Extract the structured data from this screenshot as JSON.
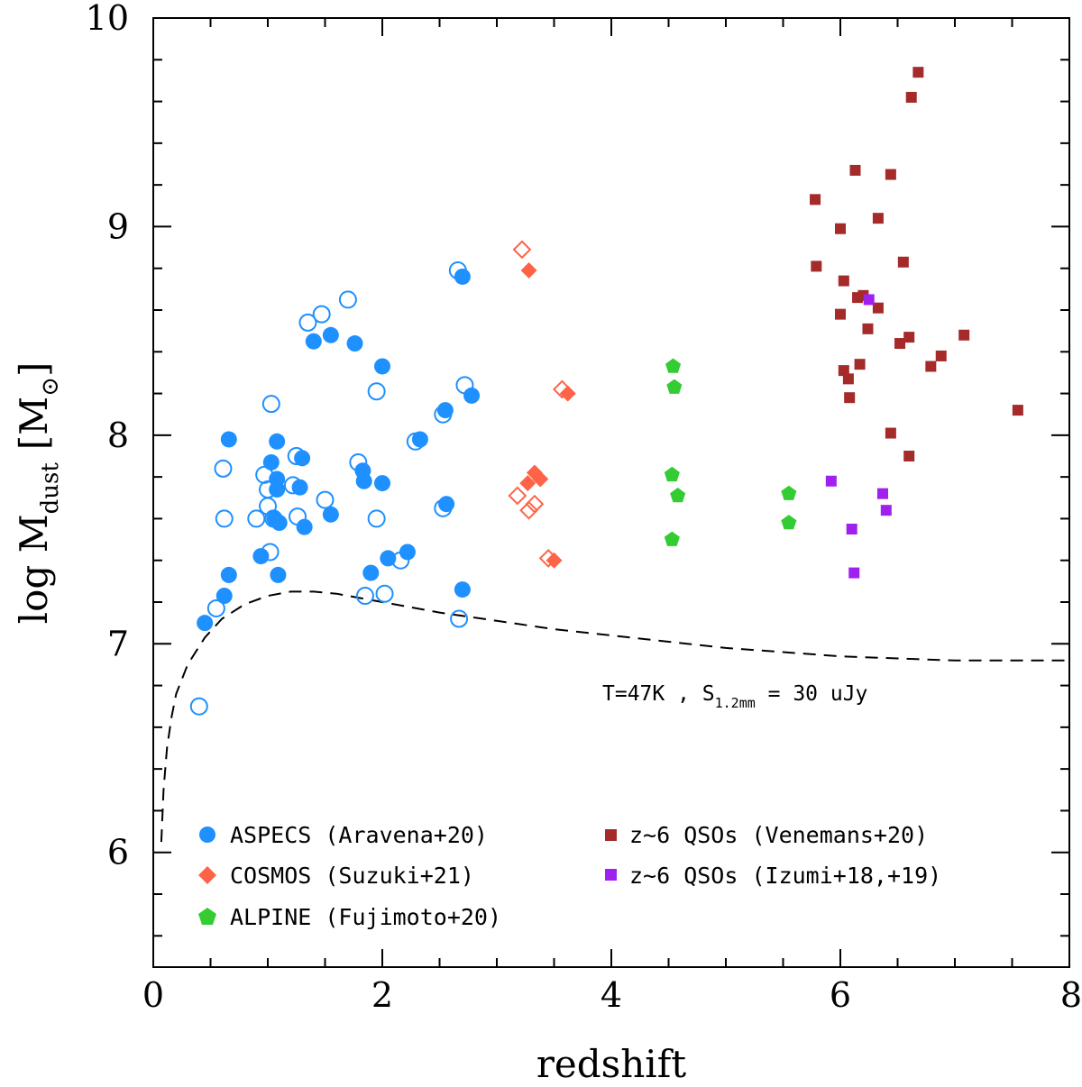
{
  "chart_data": {
    "type": "scatter",
    "title": "",
    "xlabel": "redshift",
    "ylabel": {
      "main": "log M",
      "sub": "dust",
      "unit": "[M",
      "unit_sym": "⊙",
      "unit_close": "]"
    },
    "xlim": [
      0,
      8
    ],
    "ylim": [
      5.45,
      10
    ],
    "xticks": [
      "0",
      "2",
      "4",
      "6",
      "8"
    ],
    "yticks": [
      "6",
      "7",
      "8",
      "9",
      "10"
    ],
    "annotation": {
      "text": "T=47K , S",
      "sub": "1.2mm",
      "rest": " = 30 uJy"
    },
    "colors": {
      "aspecs": "#1e90ff",
      "cosmos": "#ff6347",
      "alpine": "#33cc33",
      "venemans": "#a52a2a",
      "izumi": "#a020f0"
    },
    "series": [
      {
        "name": "ASPECS (Aravena+20)",
        "marker": "circle",
        "color": "#1e90ff",
        "filled": [
          [
            0.45,
            7.1
          ],
          [
            0.62,
            7.23
          ],
          [
            0.66,
            7.33
          ],
          [
            0.66,
            7.98
          ],
          [
            1.08,
            7.97
          ],
          [
            1.03,
            7.87
          ],
          [
            1.08,
            7.79
          ],
          [
            1.08,
            7.74
          ],
          [
            1.06,
            7.6
          ],
          [
            1.1,
            7.58
          ],
          [
            0.94,
            7.42
          ],
          [
            1.09,
            7.33
          ],
          [
            1.3,
            7.89
          ],
          [
            1.28,
            7.75
          ],
          [
            1.32,
            7.56
          ],
          [
            1.55,
            7.62
          ],
          [
            1.4,
            8.45
          ],
          [
            1.55,
            8.48
          ],
          [
            1.76,
            8.44
          ],
          [
            1.83,
            7.83
          ],
          [
            1.84,
            7.78
          ],
          [
            2.0,
            7.77
          ],
          [
            2.0,
            8.33
          ],
          [
            1.9,
            7.34
          ],
          [
            2.05,
            7.41
          ],
          [
            2.22,
            7.44
          ],
          [
            2.33,
            7.98
          ],
          [
            2.55,
            8.12
          ],
          [
            2.56,
            7.67
          ],
          [
            2.7,
            8.76
          ],
          [
            2.78,
            8.19
          ],
          [
            2.7,
            7.26
          ]
        ],
        "open": [
          [
            0.4,
            6.7
          ],
          [
            0.55,
            7.17
          ],
          [
            0.62,
            7.6
          ],
          [
            0.61,
            7.84
          ],
          [
            0.9,
            7.6
          ],
          [
            0.97,
            7.81
          ],
          [
            1.0,
            7.74
          ],
          [
            1.0,
            7.66
          ],
          [
            1.05,
            7.6
          ],
          [
            1.02,
            7.44
          ],
          [
            1.03,
            8.15
          ],
          [
            1.22,
            7.76
          ],
          [
            1.25,
            7.9
          ],
          [
            1.26,
            7.61
          ],
          [
            1.35,
            8.54
          ],
          [
            1.47,
            8.58
          ],
          [
            1.5,
            7.69
          ],
          [
            1.7,
            8.65
          ],
          [
            1.79,
            7.87
          ],
          [
            1.85,
            7.23
          ],
          [
            1.95,
            8.21
          ],
          [
            1.95,
            7.6
          ],
          [
            2.02,
            7.24
          ],
          [
            2.16,
            7.4
          ],
          [
            2.29,
            7.97
          ],
          [
            2.53,
            8.1
          ],
          [
            2.53,
            7.65
          ],
          [
            2.66,
            8.79
          ],
          [
            2.72,
            8.24
          ],
          [
            2.67,
            7.12
          ]
        ]
      },
      {
        "name": "COSMOS (Suzuki+21)",
        "marker": "diamond",
        "color": "#ff6347",
        "filled": [
          [
            3.28,
            8.79
          ],
          [
            3.62,
            8.2
          ],
          [
            3.27,
            7.77
          ],
          [
            3.33,
            7.82
          ],
          [
            3.38,
            7.79
          ],
          [
            3.5,
            7.4
          ]
        ],
        "open": [
          [
            3.22,
            8.89
          ],
          [
            3.57,
            8.22
          ],
          [
            3.18,
            7.71
          ],
          [
            3.28,
            7.64
          ],
          [
            3.33,
            7.67
          ],
          [
            3.45,
            7.41
          ]
        ]
      },
      {
        "name": "ALPINE (Fujimoto+20)",
        "marker": "pentagon",
        "color": "#33cc33",
        "filled": [
          [
            4.54,
            8.33
          ],
          [
            4.55,
            8.23
          ],
          [
            4.53,
            7.81
          ],
          [
            4.58,
            7.71
          ],
          [
            4.53,
            7.5
          ],
          [
            5.55,
            7.72
          ],
          [
            5.55,
            7.58
          ]
        ],
        "open": []
      },
      {
        "name": "z~6 QSOs (Venemans+20)",
        "marker": "square",
        "color": "#a52a2a",
        "filled": [
          [
            6.68,
            9.74
          ],
          [
            6.62,
            9.62
          ],
          [
            6.13,
            9.27
          ],
          [
            6.44,
            9.25
          ],
          [
            5.78,
            9.13
          ],
          [
            6.33,
            9.04
          ],
          [
            6.0,
            8.99
          ],
          [
            5.79,
            8.81
          ],
          [
            6.55,
            8.83
          ],
          [
            6.03,
            8.74
          ],
          [
            6.15,
            8.66
          ],
          [
            6.2,
            8.67
          ],
          [
            6.33,
            8.61
          ],
          [
            6.0,
            8.58
          ],
          [
            6.24,
            8.51
          ],
          [
            6.6,
            8.47
          ],
          [
            6.52,
            8.44
          ],
          [
            7.08,
            8.48
          ],
          [
            6.88,
            8.38
          ],
          [
            6.79,
            8.33
          ],
          [
            6.17,
            8.34
          ],
          [
            6.03,
            8.31
          ],
          [
            6.07,
            8.27
          ],
          [
            6.08,
            8.18
          ],
          [
            7.55,
            8.12
          ],
          [
            6.44,
            8.01
          ],
          [
            6.6,
            7.9
          ]
        ],
        "open": []
      },
      {
        "name": "z~6 QSOs (Izumi+18,+19)",
        "marker": "square",
        "color": "#a020f0",
        "filled": [
          [
            6.25,
            8.65
          ],
          [
            5.92,
            7.78
          ],
          [
            6.37,
            7.72
          ],
          [
            6.4,
            7.64
          ],
          [
            6.1,
            7.55
          ],
          [
            6.12,
            7.34
          ]
        ],
        "open": []
      }
    ],
    "detection_curve": {
      "label": "T=47K , S1.2mm = 30 uJy",
      "x": [
        0.07,
        0.09,
        0.12,
        0.16,
        0.2,
        0.3,
        0.45,
        0.6,
        0.8,
        1.0,
        1.2,
        1.4,
        1.6,
        1.8,
        2.0,
        2.5,
        3.0,
        3.5,
        4.0,
        4.5,
        5.0,
        5.5,
        6.0,
        6.5,
        7.0,
        7.5,
        8.0
      ],
      "y": [
        6.05,
        6.3,
        6.5,
        6.65,
        6.76,
        6.9,
        7.03,
        7.12,
        7.19,
        7.23,
        7.25,
        7.25,
        7.24,
        7.22,
        7.2,
        7.15,
        7.11,
        7.07,
        7.04,
        7.01,
        6.98,
        6.96,
        6.94,
        6.93,
        6.92,
        6.92,
        6.92
      ]
    }
  }
}
